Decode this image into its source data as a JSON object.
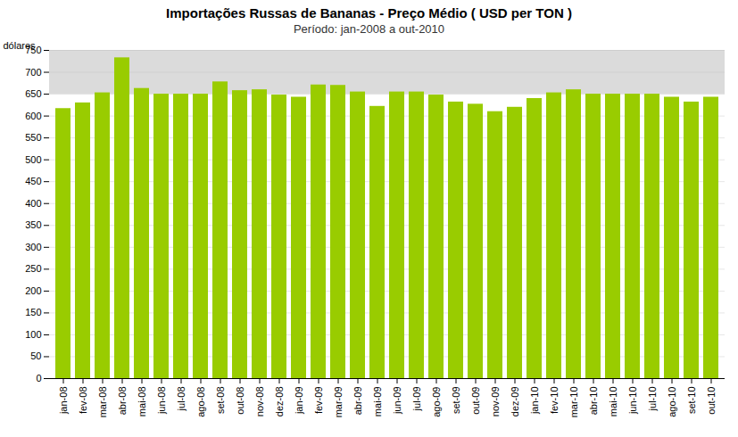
{
  "chart_data": {
    "type": "bar",
    "title": "Importações Russas de Bananas - Preço Médio ( USD per TON )",
    "subtitle": "Período: jan-2008 a out-2010",
    "y_label": "dólares",
    "categories": [
      "jan-08",
      "fev-08",
      "mar-08",
      "abr-08",
      "mai-08",
      "jun-08",
      "jul-08",
      "ago-08",
      "set-08",
      "out-08",
      "nov-08",
      "dez-08",
      "jan-09",
      "fev-09",
      "mar-09",
      "abr-09",
      "mai-09",
      "jun-09",
      "jul-09",
      "ago-09",
      "set-09",
      "out-09",
      "nov-09",
      "dez-09",
      "jan-10",
      "fev-10",
      "mar-10",
      "abr-10",
      "mai-10",
      "jun-10",
      "jul-10",
      "ago-10",
      "set-10",
      "out-10"
    ],
    "values": [
      617,
      630,
      653,
      733,
      663,
      650,
      650,
      650,
      678,
      658,
      660,
      648,
      643,
      671,
      670,
      655,
      622,
      655,
      655,
      648,
      632,
      627,
      610,
      620,
      640,
      653,
      660,
      650,
      650,
      650,
      650,
      643,
      632,
      643
    ],
    "color": "#99CC00",
    "shaded_region": [
      650,
      750
    ],
    "ylim": [
      0,
      750
    ],
    "yticks": [
      0,
      50,
      100,
      150,
      200,
      250,
      300,
      350,
      400,
      450,
      500,
      550,
      600,
      650,
      700,
      750
    ],
    "grid": true
  }
}
